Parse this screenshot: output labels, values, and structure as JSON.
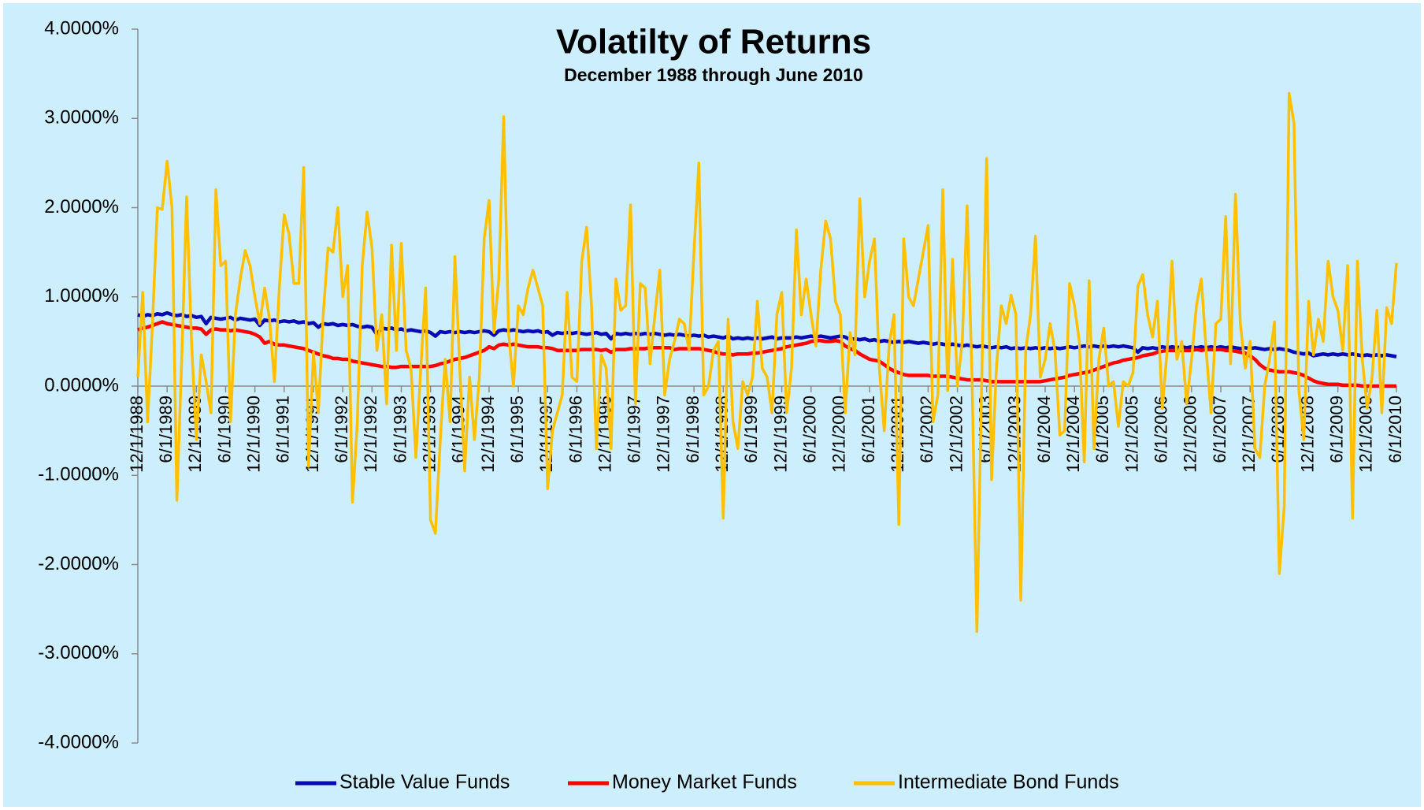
{
  "chart_data": {
    "type": "line",
    "title": "Volatilty of Returns",
    "subtitle": "December 1988 through June 2010",
    "grid": false,
    "ylim": [
      -4,
      4
    ],
    "yticks": [
      {
        "value": -4,
        "label": "-4.0000%"
      },
      {
        "value": -3,
        "label": "-3.0000%"
      },
      {
        "value": -2,
        "label": "-2.0000%"
      },
      {
        "value": -1,
        "label": "-1.0000%"
      },
      {
        "value": 0,
        "label": "0.0000%"
      },
      {
        "value": 1,
        "label": "1.0000%"
      },
      {
        "value": 2,
        "label": "2.0000%"
      },
      {
        "value": 3,
        "label": "3.0000%"
      },
      {
        "value": 4,
        "label": "4.0000%"
      }
    ],
    "categories": [
      "12/1/1988",
      null,
      null,
      null,
      null,
      null,
      "6/1/1989",
      null,
      null,
      null,
      null,
      null,
      "12/1/1989",
      null,
      null,
      null,
      null,
      null,
      "6/1/1990",
      null,
      null,
      null,
      null,
      null,
      "12/1/1990",
      null,
      null,
      null,
      null,
      null,
      "6/1/1991",
      null,
      null,
      null,
      null,
      null,
      "12/1/1991",
      null,
      null,
      null,
      null,
      null,
      "6/1/1992",
      null,
      null,
      null,
      null,
      null,
      "12/1/1992",
      null,
      null,
      null,
      null,
      null,
      "6/1/1993",
      null,
      null,
      null,
      null,
      null,
      "12/1/1993",
      null,
      null,
      null,
      null,
      null,
      "6/1/1994",
      null,
      null,
      null,
      null,
      null,
      "12/1/1994",
      null,
      null,
      null,
      null,
      null,
      "6/1/1995",
      null,
      null,
      null,
      null,
      null,
      "12/1/1995",
      null,
      null,
      null,
      null,
      null,
      "6/1/1996",
      null,
      null,
      null,
      null,
      null,
      "12/1/1996",
      null,
      null,
      null,
      null,
      null,
      "6/1/1997",
      null,
      null,
      null,
      null,
      null,
      "12/1/1997",
      null,
      null,
      null,
      null,
      null,
      "6/1/1998",
      null,
      null,
      null,
      null,
      null,
      "12/1/1998",
      null,
      null,
      null,
      null,
      null,
      "6/1/1999",
      null,
      null,
      null,
      null,
      null,
      "12/1/1999",
      null,
      null,
      null,
      null,
      null,
      "6/1/2000",
      null,
      null,
      null,
      null,
      null,
      "12/1/2000",
      null,
      null,
      null,
      null,
      null,
      "6/1/2001",
      null,
      null,
      null,
      null,
      null,
      "12/1/2001",
      null,
      null,
      null,
      null,
      null,
      "6/1/2002",
      null,
      null,
      null,
      null,
      null,
      "12/1/2002",
      null,
      null,
      null,
      null,
      null,
      "6/1/2003",
      null,
      null,
      null,
      null,
      null,
      "12/1/2003",
      null,
      null,
      null,
      null,
      null,
      "6/1/2004",
      null,
      null,
      null,
      null,
      null,
      "12/1/2004",
      null,
      null,
      null,
      null,
      null,
      "6/1/2005",
      null,
      null,
      null,
      null,
      null,
      "12/1/2005",
      null,
      null,
      null,
      null,
      null,
      "6/1/2006",
      null,
      null,
      null,
      null,
      null,
      "12/1/2006",
      null,
      null,
      null,
      null,
      null,
      "6/1/2007",
      null,
      null,
      null,
      null,
      null,
      "12/1/2007",
      null,
      null,
      null,
      null,
      null,
      "6/1/2008",
      null,
      null,
      null,
      null,
      null,
      "12/1/2008",
      null,
      null,
      null,
      null,
      null,
      "6/1/2009",
      null,
      null,
      null,
      null,
      null,
      "12/1/2009",
      null,
      null,
      null,
      null,
      null,
      "6/1/2010"
    ],
    "series": [
      {
        "name": "Stable Value Funds",
        "color": "#0a0ab4",
        "values": [
          0.8,
          0.78,
          0.8,
          0.79,
          0.81,
          0.8,
          0.82,
          0.8,
          0.79,
          0.8,
          0.78,
          0.79,
          0.77,
          0.78,
          0.7,
          0.77,
          0.76,
          0.75,
          0.76,
          0.77,
          0.74,
          0.76,
          0.75,
          0.74,
          0.75,
          0.68,
          0.74,
          0.73,
          0.74,
          0.72,
          0.73,
          0.72,
          0.73,
          0.71,
          0.72,
          0.7,
          0.71,
          0.66,
          0.7,
          0.69,
          0.7,
          0.68,
          0.69,
          0.68,
          0.69,
          0.67,
          0.66,
          0.67,
          0.66,
          0.58,
          0.65,
          0.64,
          0.65,
          0.63,
          0.64,
          0.62,
          0.63,
          0.62,
          0.61,
          0.62,
          0.6,
          0.56,
          0.61,
          0.6,
          0.61,
          0.6,
          0.61,
          0.6,
          0.61,
          0.6,
          0.61,
          0.62,
          0.61,
          0.57,
          0.62,
          0.63,
          0.62,
          0.63,
          0.62,
          0.61,
          0.62,
          0.61,
          0.62,
          0.6,
          0.61,
          0.57,
          0.6,
          0.59,
          0.6,
          0.59,
          0.6,
          0.59,
          0.58,
          0.59,
          0.6,
          0.58,
          0.59,
          0.53,
          0.59,
          0.58,
          0.59,
          0.58,
          0.59,
          0.58,
          0.59,
          0.58,
          0.59,
          0.58,
          0.57,
          0.58,
          0.57,
          0.58,
          0.57,
          0.56,
          0.57,
          0.56,
          0.57,
          0.55,
          0.56,
          0.55,
          0.54,
          0.56,
          0.53,
          0.54,
          0.53,
          0.54,
          0.53,
          0.54,
          0.53,
          0.54,
          0.55,
          0.53,
          0.54,
          0.54,
          0.54,
          0.55,
          0.54,
          0.55,
          0.56,
          0.55,
          0.56,
          0.55,
          0.54,
          0.55,
          0.56,
          0.55,
          0.52,
          0.53,
          0.52,
          0.53,
          0.51,
          0.52,
          0.5,
          0.51,
          0.5,
          0.49,
          0.5,
          0.49,
          0.5,
          0.49,
          0.48,
          0.49,
          0.48,
          0.47,
          0.48,
          0.47,
          0.46,
          0.47,
          0.46,
          0.45,
          0.46,
          0.45,
          0.44,
          0.45,
          0.44,
          0.43,
          0.44,
          0.43,
          0.44,
          0.42,
          0.43,
          0.42,
          0.43,
          0.42,
          0.43,
          0.42,
          0.43,
          0.42,
          0.43,
          0.42,
          0.43,
          0.44,
          0.43,
          0.44,
          0.45,
          0.44,
          0.45,
          0.44,
          0.45,
          0.44,
          0.45,
          0.44,
          0.45,
          0.44,
          0.43,
          0.38,
          0.43,
          0.42,
          0.43,
          0.42,
          0.44,
          0.43,
          0.44,
          0.43,
          0.44,
          0.43,
          0.44,
          0.43,
          0.44,
          0.43,
          0.44,
          0.43,
          0.44,
          0.43,
          0.44,
          0.43,
          0.42,
          0.43,
          0.42,
          0.43,
          0.42,
          0.41,
          0.42,
          0.41,
          0.42,
          0.41,
          0.4,
          0.38,
          0.37,
          0.36,
          0.37,
          0.34,
          0.35,
          0.36,
          0.35,
          0.36,
          0.35,
          0.36,
          0.35,
          0.36,
          0.35,
          0.34,
          0.35,
          0.34,
          0.35,
          0.34,
          0.35,
          0.34,
          0.33
        ]
      },
      {
        "name": "Money Market Funds",
        "color": "#ff0000",
        "values": [
          0.63,
          0.65,
          0.66,
          0.68,
          0.7,
          0.72,
          0.7,
          0.69,
          0.68,
          0.67,
          0.66,
          0.65,
          0.65,
          0.64,
          0.58,
          0.63,
          0.64,
          0.63,
          0.63,
          0.62,
          0.63,
          0.62,
          0.61,
          0.6,
          0.58,
          0.55,
          0.48,
          0.5,
          0.47,
          0.46,
          0.46,
          0.45,
          0.44,
          0.43,
          0.42,
          0.4,
          0.38,
          0.36,
          0.34,
          0.33,
          0.31,
          0.31,
          0.3,
          0.3,
          0.28,
          0.27,
          0.26,
          0.25,
          0.24,
          0.23,
          0.22,
          0.22,
          0.21,
          0.21,
          0.22,
          0.22,
          0.22,
          0.22,
          0.22,
          0.22,
          0.22,
          0.23,
          0.25,
          0.26,
          0.28,
          0.3,
          0.31,
          0.32,
          0.34,
          0.36,
          0.38,
          0.4,
          0.44,
          0.42,
          0.46,
          0.47,
          0.46,
          0.47,
          0.46,
          0.45,
          0.44,
          0.44,
          0.44,
          0.43,
          0.43,
          0.42,
          0.4,
          0.4,
          0.4,
          0.4,
          0.4,
          0.41,
          0.41,
          0.41,
          0.41,
          0.4,
          0.41,
          0.38,
          0.41,
          0.41,
          0.41,
          0.42,
          0.42,
          0.42,
          0.42,
          0.43,
          0.43,
          0.43,
          0.43,
          0.43,
          0.41,
          0.42,
          0.42,
          0.42,
          0.42,
          0.42,
          0.41,
          0.4,
          0.39,
          0.37,
          0.36,
          0.36,
          0.35,
          0.36,
          0.36,
          0.36,
          0.37,
          0.37,
          0.38,
          0.39,
          0.4,
          0.41,
          0.42,
          0.44,
          0.45,
          0.46,
          0.47,
          0.48,
          0.5,
          0.51,
          0.51,
          0.5,
          0.5,
          0.51,
          0.5,
          0.45,
          0.42,
          0.4,
          0.36,
          0.33,
          0.3,
          0.29,
          0.28,
          0.24,
          0.2,
          0.17,
          0.15,
          0.13,
          0.12,
          0.12,
          0.12,
          0.12,
          0.12,
          0.11,
          0.11,
          0.11,
          0.11,
          0.1,
          0.09,
          0.08,
          0.07,
          0.07,
          0.07,
          0.07,
          0.06,
          0.05,
          0.05,
          0.05,
          0.05,
          0.05,
          0.05,
          0.05,
          0.05,
          0.05,
          0.05,
          0.05,
          0.06,
          0.07,
          0.08,
          0.09,
          0.1,
          0.12,
          0.13,
          0.14,
          0.15,
          0.16,
          0.18,
          0.2,
          0.22,
          0.24,
          0.26,
          0.27,
          0.29,
          0.3,
          0.31,
          0.32,
          0.34,
          0.35,
          0.36,
          0.38,
          0.39,
          0.4,
          0.4,
          0.4,
          0.4,
          0.4,
          0.4,
          0.41,
          0.4,
          0.41,
          0.41,
          0.41,
          0.41,
          0.4,
          0.4,
          0.39,
          0.38,
          0.37,
          0.34,
          0.3,
          0.24,
          0.2,
          0.18,
          0.17,
          0.16,
          0.16,
          0.16,
          0.15,
          0.14,
          0.12,
          0.09,
          0.06,
          0.04,
          0.03,
          0.02,
          0.02,
          0.02,
          0.01,
          0.01,
          0.01,
          0.01,
          0.0,
          0.0,
          0.0,
          0.0,
          0.0,
          0.0,
          0.0,
          0.0
        ]
      },
      {
        "name": "Intermediate Bond Funds",
        "color": "#ffc000",
        "values": [
          0.1,
          1.05,
          -0.4,
          0.7,
          2.0,
          1.98,
          2.52,
          2.0,
          -1.28,
          0.3,
          2.12,
          0.5,
          -0.6,
          0.35,
          0.05,
          -0.3,
          2.2,
          1.35,
          1.4,
          -0.4,
          0.8,
          1.2,
          1.52,
          1.35,
          1.0,
          0.7,
          1.1,
          0.75,
          0.05,
          1.1,
          1.92,
          1.7,
          1.15,
          1.15,
          2.45,
          -0.9,
          0.38,
          -0.3,
          0.8,
          1.55,
          1.5,
          2.0,
          1.0,
          1.35,
          -1.3,
          -0.4,
          1.35,
          1.95,
          1.55,
          0.4,
          0.8,
          -0.2,
          1.58,
          0.4,
          1.6,
          0.4,
          0.2,
          -0.8,
          0.2,
          1.1,
          -1.5,
          -1.65,
          -0.6,
          0.3,
          -0.4,
          1.45,
          0.2,
          -0.95,
          0.1,
          -0.6,
          0.1,
          1.65,
          2.08,
          0.6,
          1.2,
          3.02,
          0.6,
          0.0,
          0.9,
          0.8,
          1.1,
          1.3,
          1.1,
          0.9,
          -1.15,
          -0.5,
          -0.3,
          -0.1,
          1.05,
          0.1,
          0.05,
          1.4,
          1.78,
          0.9,
          -0.7,
          0.35,
          0.2,
          -0.7,
          1.2,
          0.85,
          0.9,
          2.03,
          -0.2,
          1.15,
          1.1,
          0.25,
          0.8,
          1.3,
          -0.1,
          0.3,
          0.5,
          0.75,
          0.7,
          0.4,
          1.5,
          2.5,
          -0.1,
          0.0,
          0.4,
          0.5,
          -1.48,
          0.75,
          -0.4,
          -0.7,
          0.05,
          -0.1,
          0.1,
          0.95,
          0.2,
          0.1,
          -0.3,
          0.8,
          1.05,
          -0.3,
          0.2,
          1.75,
          0.8,
          1.2,
          0.8,
          0.45,
          1.3,
          1.85,
          1.65,
          0.95,
          0.8,
          -0.3,
          0.6,
          0.35,
          2.1,
          1.0,
          1.4,
          1.65,
          0.2,
          -0.5,
          0.45,
          0.8,
          -1.55,
          1.65,
          1.0,
          0.9,
          1.2,
          1.5,
          1.8,
          -0.4,
          -0.1,
          2.2,
          -0.05,
          1.42,
          0.0,
          0.5,
          2.02,
          0.1,
          -2.75,
          0.1,
          2.55,
          -1.05,
          0.2,
          0.9,
          0.7,
          1.02,
          0.8,
          -2.4,
          0.4,
          0.8,
          1.68,
          0.1,
          0.3,
          0.7,
          0.4,
          -0.55,
          -0.5,
          1.15,
          0.9,
          0.5,
          -0.85,
          1.18,
          -0.7,
          0.3,
          0.65,
          0.0,
          0.05,
          -0.45,
          0.05,
          0.0,
          0.15,
          1.12,
          1.25,
          0.8,
          0.55,
          0.95,
          -0.25,
          0.4,
          1.4,
          0.3,
          0.5,
          -0.2,
          0.3,
          0.9,
          1.2,
          0.4,
          -0.3,
          0.7,
          0.75,
          1.9,
          0.25,
          2.15,
          0.7,
          0.2,
          0.5,
          -0.7,
          -0.8,
          0.0,
          0.3,
          0.72,
          -2.1,
          -1.35,
          3.28,
          2.95,
          -0.05,
          -0.6,
          0.95,
          0.35,
          0.75,
          0.5,
          1.4,
          1.0,
          0.85,
          0.4,
          1.35,
          -1.48,
          1.4,
          0.3,
          -0.25,
          0.1,
          0.85,
          -0.3,
          0.88,
          0.7,
          1.38
        ]
      }
    ]
  }
}
